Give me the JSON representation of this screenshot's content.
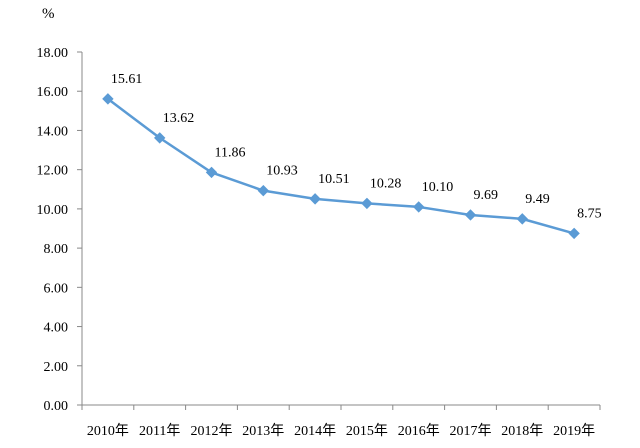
{
  "chart_data": {
    "type": "line",
    "title": "",
    "xlabel": "",
    "ylabel": "%",
    "categories": [
      "2010年",
      "2011年",
      "2012年",
      "2013年",
      "2014年",
      "2015年",
      "2016年",
      "2017年",
      "2018年",
      "2019年"
    ],
    "series": [
      {
        "values": [
          15.61,
          13.62,
          11.86,
          10.93,
          10.51,
          10.28,
          10.1,
          9.69,
          9.49,
          8.75
        ],
        "data_labels": [
          "15.61",
          "13.62",
          "11.86",
          "10.93",
          "10.51",
          "10.28",
          "10.10",
          "9.69",
          "9.49",
          "8.75"
        ]
      }
    ],
    "ylim": [
      0,
      18
    ],
    "yticks": [
      "0.00",
      "2.00",
      "4.00",
      "6.00",
      "8.00",
      "10.00",
      "12.00",
      "14.00",
      "16.00",
      "18.00"
    ],
    "grid": false,
    "legend": "none",
    "marker": "diamond",
    "colors": {
      "series": "#5b9bd5",
      "axis": "#888888",
      "text": "#000000"
    }
  }
}
